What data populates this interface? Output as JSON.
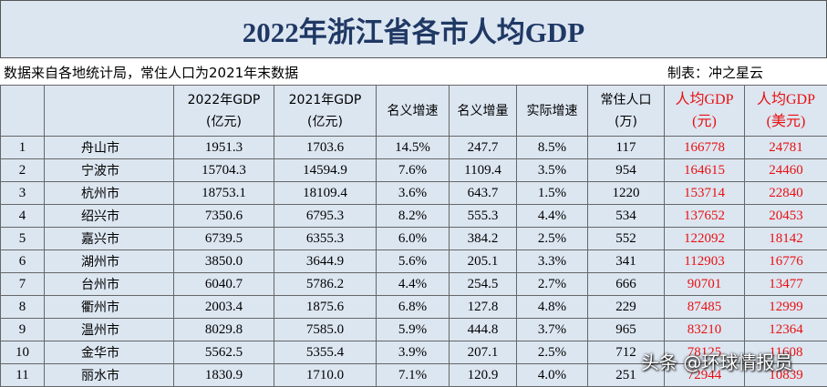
{
  "title": "2022年浙江省各市人均GDP",
  "info": {
    "source": "数据来自各地统计局，常住人口为2021年末数据",
    "maker": "制表：冲之星云"
  },
  "table": {
    "header": [
      [
        "2022年GDP",
        "(亿元)"
      ],
      [
        "2021年GDP",
        "(亿元)"
      ],
      [
        "名义增速"
      ],
      [
        "名义增量"
      ],
      [
        "实际增速"
      ],
      [
        "常住人口",
        "(万)"
      ],
      [
        "人均GDP",
        "(元)"
      ],
      [
        "人均GDP",
        "(美元)"
      ]
    ],
    "rows": [
      [
        "1",
        "舟山市",
        "1951.3",
        "1703.6",
        "14.5%",
        "247.7",
        "8.5%",
        "117",
        "166778",
        "24781"
      ],
      [
        "2",
        "宁波市",
        "15704.3",
        "14594.9",
        "7.6%",
        "1109.4",
        "3.5%",
        "954",
        "164615",
        "24460"
      ],
      [
        "3",
        "杭州市",
        "18753.1",
        "18109.4",
        "3.6%",
        "643.7",
        "1.5%",
        "1220",
        "153714",
        "22840"
      ],
      [
        "4",
        "绍兴市",
        "7350.6",
        "6795.3",
        "8.2%",
        "555.3",
        "4.4%",
        "534",
        "137652",
        "20453"
      ],
      [
        "5",
        "嘉兴市",
        "6739.5",
        "6355.3",
        "6.0%",
        "384.2",
        "2.5%",
        "552",
        "122092",
        "18142"
      ],
      [
        "6",
        "湖州市",
        "3850.0",
        "3644.9",
        "5.6%",
        "205.1",
        "3.3%",
        "341",
        "112903",
        "16776"
      ],
      [
        "7",
        "台州市",
        "6040.7",
        "5786.2",
        "4.4%",
        "254.5",
        "2.7%",
        "666",
        "90701",
        "13477"
      ],
      [
        "8",
        "衢州市",
        "2003.4",
        "1875.6",
        "6.8%",
        "127.8",
        "4.8%",
        "229",
        "87485",
        "12999"
      ],
      [
        "9",
        "温州市",
        "8029.8",
        "7585.0",
        "5.9%",
        "444.8",
        "3.7%",
        "965",
        "83210",
        "12364"
      ],
      [
        "10",
        "金华市",
        "5562.5",
        "5355.4",
        "3.9%",
        "207.1",
        "2.5%",
        "712",
        "78125",
        "11608"
      ],
      [
        "11",
        "丽水市",
        "1830.9",
        "1710.0",
        "7.1%",
        "120.9",
        "4.0%",
        "251",
        "72944",
        "10839"
      ]
    ]
  },
  "watermark": "头条 @环球情报员"
}
